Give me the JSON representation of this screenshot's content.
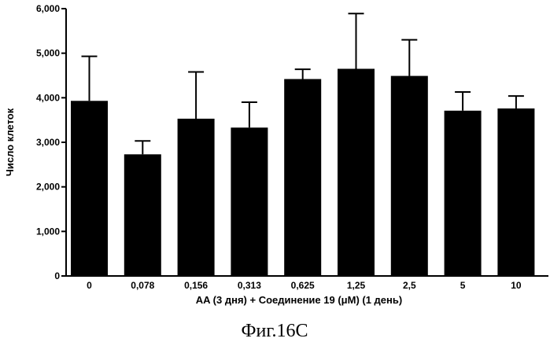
{
  "chart_data": {
    "type": "bar",
    "categories": [
      "0",
      "0,078",
      "0,156",
      "0,313",
      "0,625",
      "1,25",
      "2,5",
      "5",
      "10"
    ],
    "values": [
      3930,
      2730,
      3530,
      3330,
      4420,
      4650,
      4490,
      3710,
      3760
    ],
    "error_upper": [
      4930,
      3030,
      4580,
      3900,
      4640,
      5890,
      5300,
      4130,
      4040
    ],
    "title": "",
    "xlabel": "AA (3 дня)  + Соединение 19 (μM) (1 день)",
    "ylabel": "Число клеток",
    "ylim": [
      0,
      6000
    ],
    "yticks": [
      0,
      1000,
      2000,
      3000,
      4000,
      5000,
      6000
    ],
    "ytick_labels": [
      "0",
      "1,000",
      "2,000",
      "3,000",
      "4,000",
      "5,000",
      "6,000"
    ],
    "grid": false,
    "bar_color": "#000000"
  },
  "caption": "Фиг.16C"
}
